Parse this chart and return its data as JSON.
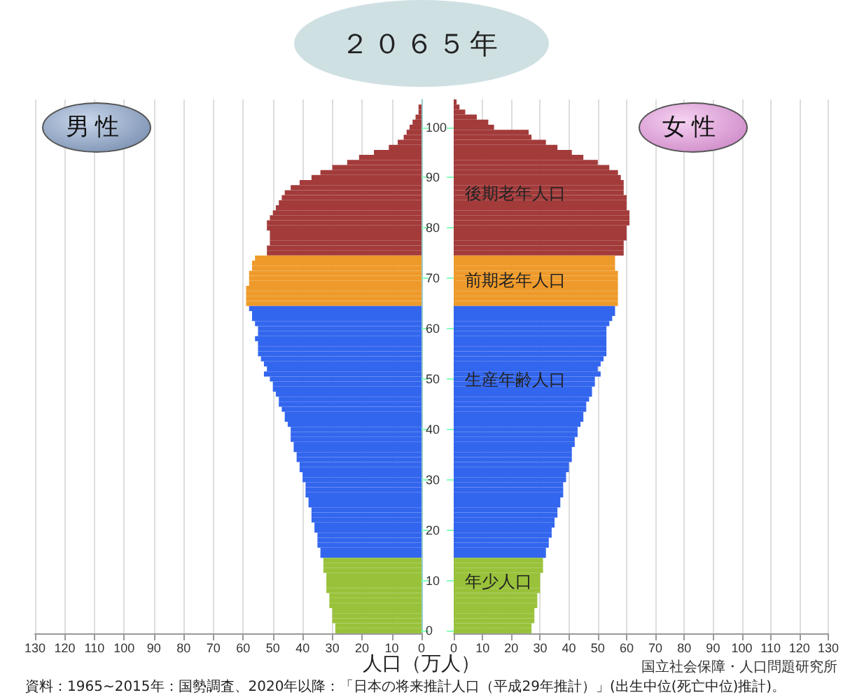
{
  "chart_data": [
    {
      "type": "bar",
      "title": "２０６５年",
      "xlabel": "人口（万人）",
      "orientation": "horizontal",
      "xlim": [
        130,
        0
      ],
      "xticks": [
        0,
        10,
        20,
        30,
        40,
        50,
        60,
        70,
        80,
        90,
        100,
        110,
        120,
        130
      ],
      "grid": "x",
      "categories": [
        null,
        null,
        null,
        null,
        null,
        "100",
        null,
        null,
        null,
        null,
        null,
        null,
        null,
        null,
        null,
        "90",
        null,
        null,
        null,
        null,
        null,
        null,
        null,
        null,
        null,
        "80",
        null,
        null,
        null,
        null,
        null,
        null,
        null,
        null,
        null,
        "70",
        null,
        null,
        null,
        null,
        null,
        null,
        null,
        null,
        null,
        "60",
        null,
        null,
        null,
        null,
        null,
        null,
        null,
        null,
        null,
        "50",
        null,
        null,
        null,
        null,
        null,
        null,
        null,
        null,
        null,
        "40",
        null,
        null,
        null,
        null,
        null,
        null,
        null,
        null,
        null,
        "30",
        null,
        null,
        null,
        null,
        null,
        null,
        null,
        null,
        null,
        "20",
        null,
        null,
        null,
        null,
        null,
        null,
        null,
        null,
        null,
        "10",
        null,
        null,
        null,
        null,
        null,
        null,
        null,
        null,
        null,
        "0"
      ],
      "series": [
        {
          "name": "男性",
          "values": [
            0,
            1,
            1,
            2,
            3,
            4,
            5,
            6,
            8,
            11,
            16,
            21,
            25,
            30,
            34,
            37,
            41,
            44,
            46,
            47,
            48,
            49,
            50,
            51,
            52,
            52,
            51,
            51,
            51,
            52,
            52,
            56,
            57,
            57,
            58,
            58,
            58,
            59,
            59,
            59,
            59,
            58,
            57,
            57,
            56,
            55,
            55,
            56,
            55,
            55,
            55,
            54,
            53,
            52,
            53,
            51,
            50,
            50,
            49,
            48,
            48,
            47,
            46,
            46,
            45,
            44,
            44,
            44,
            43,
            43,
            42,
            42,
            41,
            41,
            40,
            40,
            39,
            39,
            39,
            38,
            38,
            37,
            37,
            37,
            36,
            36,
            35,
            35,
            35,
            34,
            34,
            33,
            33,
            33,
            32,
            32,
            32,
            32,
            31,
            31,
            31,
            30,
            30,
            30,
            29,
            29
          ],
          "colors": [
            "#a33b3b",
            "#a33b3b",
            "#a33b3b",
            "#a33b3b",
            "#a33b3b",
            "#a33b3b",
            "#a33b3b",
            "#a33b3b",
            "#a33b3b",
            "#a33b3b",
            "#a33b3b",
            "#a33b3b",
            "#a33b3b",
            "#a33b3b",
            "#a33b3b",
            "#a33b3b",
            "#a33b3b",
            "#a33b3b",
            "#a33b3b",
            "#a33b3b",
            "#a33b3b",
            "#a33b3b",
            "#a33b3b",
            "#a33b3b",
            "#a33b3b",
            "#a33b3b",
            "#a33b3b",
            "#a33b3b",
            "#a33b3b",
            "#a33b3b",
            "#a33b3b",
            "#ee9a2a",
            "#ee9a2a",
            "#ee9a2a",
            "#ee9a2a",
            "#ee9a2a",
            "#ee9a2a",
            "#ee9a2a",
            "#ee9a2a",
            "#ee9a2a",
            "#ee9a2a",
            "#3366ee",
            "#3366ee",
            "#3366ee",
            "#3366ee",
            "#3366ee",
            "#3366ee",
            "#3366ee",
            "#3366ee",
            "#3366ee",
            "#3366ee",
            "#3366ee",
            "#3366ee",
            "#3366ee",
            "#3366ee",
            "#3366ee",
            "#3366ee",
            "#3366ee",
            "#3366ee",
            "#3366ee",
            "#3366ee",
            "#3366ee",
            "#3366ee",
            "#3366ee",
            "#3366ee",
            "#3366ee",
            "#3366ee",
            "#3366ee",
            "#3366ee",
            "#3366ee",
            "#3366ee",
            "#3366ee",
            "#3366ee",
            "#3366ee",
            "#3366ee",
            "#3366ee",
            "#3366ee",
            "#3366ee",
            "#3366ee",
            "#3366ee",
            "#3366ee",
            "#3366ee",
            "#3366ee",
            "#3366ee",
            "#3366ee",
            "#3366ee",
            "#3366ee",
            "#3366ee",
            "#3366ee",
            "#3366ee",
            "#3366ee",
            "#99c23a",
            "#99c23a",
            "#99c23a",
            "#99c23a",
            "#99c23a",
            "#99c23a",
            "#99c23a",
            "#99c23a",
            "#99c23a",
            "#99c23a",
            "#99c23a",
            "#99c23a",
            "#99c23a",
            "#99c23a",
            "#99c23a"
          ]
        }
      ],
      "annotations": [
        "資料：1965~2015年：国勢調査、2020年以降：「日本の将来推計人口（平成29年推計）」(出生中位(死亡中位)推計)。",
        "国立社会保障・人口問題研究所"
      ]
    },
    {
      "type": "bar",
      "orientation": "horizontal",
      "xlim": [
        0,
        130
      ],
      "xticks": [
        0,
        10,
        20,
        30,
        40,
        50,
        60,
        70,
        80,
        90,
        100,
        110,
        120,
        130
      ],
      "grid": "x",
      "tick_labels": "x",
      "categories": [
        null,
        null,
        null,
        null,
        null,
        "100",
        null,
        null,
        null,
        null,
        null,
        null,
        null,
        null,
        null,
        "90",
        null,
        null,
        null,
        null,
        null,
        null,
        null,
        null,
        null,
        "80",
        null,
        null,
        null,
        null,
        null,
        null,
        null,
        null,
        null,
        "70",
        null,
        null,
        null,
        null,
        null,
        null,
        null,
        null,
        null,
        "60",
        null,
        null,
        null,
        null,
        null,
        null,
        null,
        null,
        null,
        "50",
        null,
        null,
        null,
        null,
        null,
        null,
        null,
        null,
        null,
        "40",
        null,
        null,
        null,
        null,
        null,
        null,
        null,
        null,
        null,
        "30",
        null,
        null,
        null,
        null,
        null,
        null,
        null,
        null,
        null,
        "20",
        null,
        null,
        null,
        null,
        null,
        null,
        null,
        null,
        null,
        "10",
        null,
        null,
        null,
        null,
        null,
        null,
        null,
        null,
        null,
        "0"
      ],
      "series": [
        {
          "name": "女性",
          "values": [
            1,
            2,
            4,
            8,
            12,
            14,
            26,
            27,
            32,
            36,
            41,
            45,
            50,
            54,
            57,
            58,
            59,
            59,
            59,
            60,
            60,
            60,
            61,
            61,
            61,
            60,
            60,
            60,
            59,
            59,
            59,
            56,
            56,
            56,
            57,
            57,
            57,
            57,
            57,
            57,
            57,
            56,
            56,
            55,
            54,
            53,
            53,
            53,
            53,
            53,
            53,
            52,
            51,
            50,
            51,
            49,
            49,
            48,
            48,
            47,
            46,
            46,
            45,
            45,
            44,
            43,
            43,
            42,
            42,
            41,
            41,
            41,
            40,
            40,
            39,
            39,
            38,
            38,
            38,
            37,
            37,
            36,
            36,
            35,
            35,
            34,
            34,
            33,
            33,
            32,
            32,
            31,
            31,
            31,
            30,
            30,
            30,
            30,
            29,
            29,
            29,
            28,
            28,
            28,
            27,
            27
          ],
          "colors": [
            "#a33b3b",
            "#a33b3b",
            "#a33b3b",
            "#a33b3b",
            "#a33b3b",
            "#a33b3b",
            "#a33b3b",
            "#a33b3b",
            "#a33b3b",
            "#a33b3b",
            "#a33b3b",
            "#a33b3b",
            "#a33b3b",
            "#a33b3b",
            "#a33b3b",
            "#a33b3b",
            "#a33b3b",
            "#a33b3b",
            "#a33b3b",
            "#a33b3b",
            "#a33b3b",
            "#a33b3b",
            "#a33b3b",
            "#a33b3b",
            "#a33b3b",
            "#a33b3b",
            "#a33b3b",
            "#a33b3b",
            "#a33b3b",
            "#a33b3b",
            "#a33b3b",
            "#ee9a2a",
            "#ee9a2a",
            "#ee9a2a",
            "#ee9a2a",
            "#ee9a2a",
            "#ee9a2a",
            "#ee9a2a",
            "#ee9a2a",
            "#ee9a2a",
            "#ee9a2a",
            "#3366ee",
            "#3366ee",
            "#3366ee",
            "#3366ee",
            "#3366ee",
            "#3366ee",
            "#3366ee",
            "#3366ee",
            "#3366ee",
            "#3366ee",
            "#3366ee",
            "#3366ee",
            "#3366ee",
            "#3366ee",
            "#3366ee",
            "#3366ee",
            "#3366ee",
            "#3366ee",
            "#3366ee",
            "#3366ee",
            "#3366ee",
            "#3366ee",
            "#3366ee",
            "#3366ee",
            "#3366ee",
            "#3366ee",
            "#3366ee",
            "#3366ee",
            "#3366ee",
            "#3366ee",
            "#3366ee",
            "#3366ee",
            "#3366ee",
            "#3366ee",
            "#3366ee",
            "#3366ee",
            "#3366ee",
            "#3366ee",
            "#3366ee",
            "#3366ee",
            "#3366ee",
            "#3366ee",
            "#3366ee",
            "#3366ee",
            "#3366ee",
            "#3366ee",
            "#3366ee",
            "#3366ee",
            "#3366ee",
            "#3366ee",
            "#99c23a",
            "#99c23a",
            "#99c23a",
            "#99c23a",
            "#99c23a",
            "#99c23a",
            "#99c23a",
            "#99c23a",
            "#99c23a",
            "#99c23a",
            "#99c23a",
            "#99c23a",
            "#99c23a",
            "#99c23a",
            "#99c23a"
          ]
        }
      ],
      "annotations": [
        "後期老年人口",
        "前期老年人口",
        "生産年齢人口",
        "年少人口"
      ]
    }
  ]
}
